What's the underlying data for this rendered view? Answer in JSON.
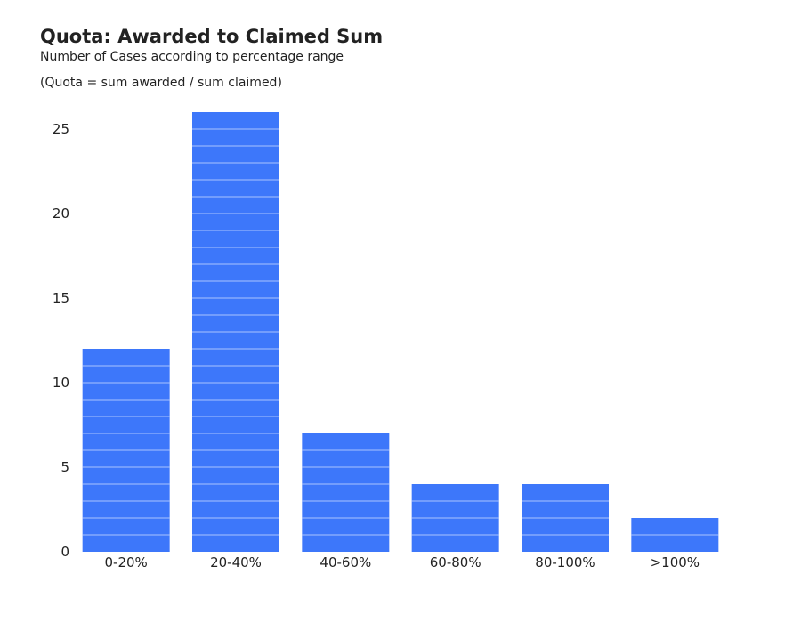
{
  "chart_data": {
    "type": "bar",
    "title": "Quota: Awarded to Claimed Sum",
    "subtitle": "Number of Cases according to percentage range",
    "note": "(Quota = sum awarded / sum claimed)",
    "categories": [
      "0-20%",
      "20-40%",
      "40-60%",
      "60-80%",
      "80-100%",
      ">100%"
    ],
    "values": [
      12,
      26,
      7,
      4,
      4,
      2
    ],
    "ylim": [
      0,
      26
    ],
    "yticks": [
      0,
      5,
      10,
      15,
      20,
      25
    ],
    "xlabel": "",
    "ylabel": "",
    "grid": false,
    "bar_color": "#3d77fa",
    "unit_separator_color": "#a9c3ff"
  }
}
